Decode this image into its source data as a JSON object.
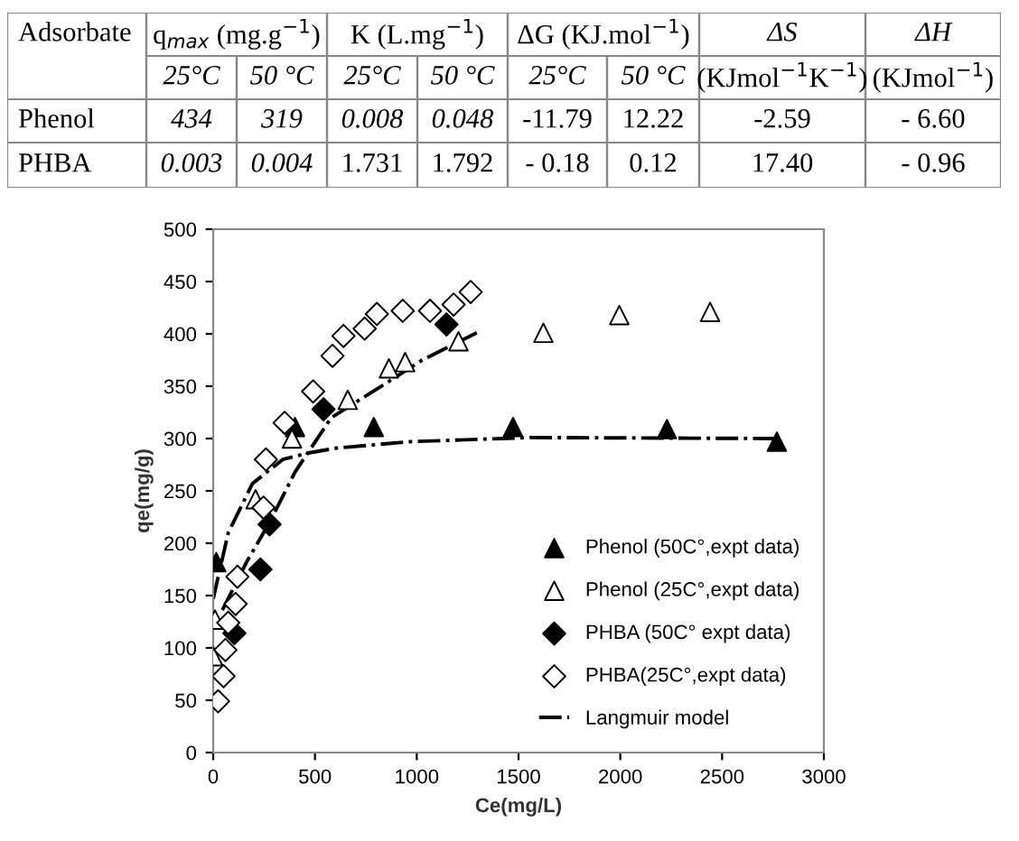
{
  "chart_data": [
    {
      "type": "other",
      "annotations": [
        "Adsorbate",
        "q$_{max}$ (mg.g$^{−1}$)",
        "K (L.mg$^{−1}$)",
        "ΔG (KJ.mol$^{−1}$)",
        "ΔS",
        "ΔH",
        "25°C",
        "50 °C",
        "25°C",
        "50 °C",
        "25°C",
        "50 °C",
        "(KJmol$^{−1}$K$^{−1}$)",
        "(KJmol$^{−1}$)",
        "Phenol",
        "434",
        "319",
        "0.008",
        "0.048",
        "-11.79",
        "12.22",
        "-2.59",
        "- 6.60",
        "PHBA",
        "0.003",
        "0.004",
        "1.731",
        "1.792",
        "- 0.18",
        "0.12",
        "17.40",
        "- 0.96"
      ]
    },
    {
      "type": "scatter",
      "xlabel": "Ce(mg/L)",
      "ylabel": "qe(mg/g)",
      "xlim": [
        0,
        3000
      ],
      "ylim": [
        0,
        500
      ],
      "xticks": [
        0,
        500,
        1000,
        1500,
        2000,
        2500,
        3000
      ],
      "yticks": [
        0,
        50,
        100,
        150,
        200,
        250,
        300,
        350,
        400,
        450,
        500
      ],
      "grid": false,
      "legend": "bottom right",
      "series": [
        {
          "name": "Phenol (50C°,expt data)",
          "color": "#000000",
          "marker": "triangle",
          "x": [
            15,
            402,
            789,
            1473,
            2229,
            2769
          ],
          "values": [
            182,
            311,
            311,
            311,
            309,
            297
          ]
        },
        {
          "name": "Phenol (25C°,expt data)",
          "color": "#ffffff",
          "marker": "triangle",
          "x": [
            0,
            9,
            208,
            387,
            661,
            863,
            943,
            1205,
            1622,
            1995,
            2441
          ],
          "values": [
            92,
            127,
            242,
            300,
            337,
            367,
            373,
            393,
            401,
            418,
            421
          ]
        },
        {
          "name": "PHBA (50C° expt data)",
          "color": "#000000",
          "marker": "diamond",
          "x": [
            104,
            232,
            277,
            542,
            1146
          ],
          "values": [
            114,
            175,
            218,
            328,
            409
          ]
        },
        {
          "name": "PHBA(25C°,expt data)",
          "color": "#ffffff",
          "marker": "diamond",
          "x": [
            24,
            51,
            60,
            74,
            110,
            119,
            247,
            259,
            351,
            491,
            586,
            640,
            744,
            804,
            931,
            1065,
            1181,
            1265
          ],
          "values": [
            49,
            73,
            98,
            124,
            142,
            168,
            234,
            280,
            315,
            345,
            379,
            398,
            405,
            419,
            422,
            422,
            428,
            440
          ]
        },
        {
          "name": "Langmuir model",
          "type": "line",
          "line_style": "dashdot",
          "color": "#000000",
          "x": [
            0,
            74,
            193,
            342,
            461,
            610,
            967,
            1562,
            2769
          ],
          "values": [
            147,
            210,
            257,
            280,
            286,
            291,
            297,
            301,
            300
          ]
        },
        {
          "type": "line",
          "line_style": "dashdot",
          "color": "#000000",
          "x": [
            45,
            164,
            283,
            402,
            580,
            818,
            1027,
            1295
          ],
          "values": [
            136,
            182,
            222,
            268,
            320,
            349,
            375,
            401
          ]
        }
      ]
    }
  ]
}
